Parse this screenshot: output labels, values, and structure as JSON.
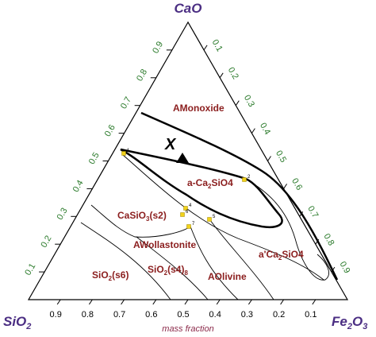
{
  "corners": {
    "top": "CaO",
    "left": {
      "text": "SiO",
      "sub": "2"
    },
    "right": {
      "text": "Fe",
      "sub": "2",
      "text2": "O",
      "sub2": "3"
    }
  },
  "axes": {
    "bottom": {
      "ticks": [
        "0.9",
        "0.8",
        "0.7",
        "0.6",
        "0.5",
        "0.4",
        "0.3",
        "0.2",
        "0.1"
      ],
      "label": "mass fraction"
    },
    "left": {
      "ticks": [
        "0.1",
        "0.2",
        "0.3",
        "0.4",
        "0.5",
        "0.6",
        "0.7",
        "0.8",
        "0.9"
      ]
    },
    "right": {
      "ticks": [
        "0.1",
        "0.2",
        "0.3",
        "0.4",
        "0.5",
        "0.6",
        "0.7",
        "0.8",
        "0.9"
      ]
    }
  },
  "marker": "X",
  "regions": [
    {
      "text": "AMonoxide"
    },
    {
      "text": "a-Ca",
      "sub": "2",
      "after": "SiO4"
    },
    {
      "text": "CaSiO",
      "sub": "3",
      "after": "(s2)"
    },
    {
      "text": "AWollastonite"
    },
    {
      "text": "SiO",
      "sub": "2",
      "after": "(s6)"
    },
    {
      "text": "SiO",
      "sub": "2",
      "after": "(s4)",
      "sub2": "8"
    },
    {
      "text": "AOlivine"
    },
    {
      "text": "a'Ca",
      "sub": "2",
      "after": "SiO4"
    }
  ],
  "points": [
    "1",
    "2",
    "4",
    "6",
    "7",
    "5"
  ]
}
